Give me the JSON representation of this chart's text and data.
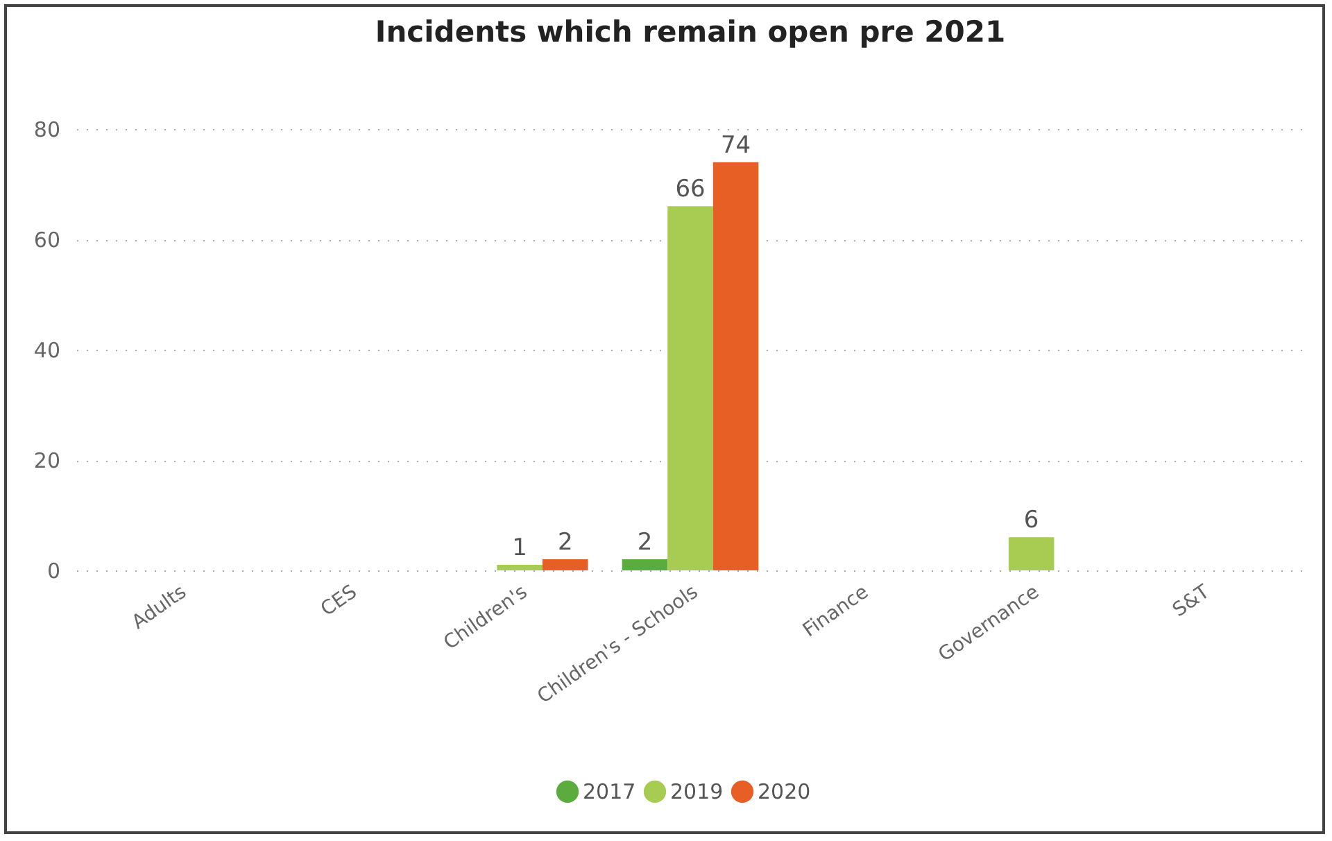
{
  "chart_data": {
    "type": "bar",
    "title": "Incidents which remain open pre 2021",
    "categories": [
      "Adults",
      "CES",
      "Children's",
      "Children's - Schools",
      "Finance",
      "Governance",
      "S&T"
    ],
    "series": [
      {
        "name": "2017",
        "color": "#5bab3e",
        "values": [
          null,
          null,
          null,
          2,
          null,
          null,
          null
        ]
      },
      {
        "name": "2019",
        "color": "#a8cc52",
        "values": [
          null,
          null,
          1,
          66,
          null,
          6,
          null
        ]
      },
      {
        "name": "2020",
        "color": "#e85f26",
        "values": [
          null,
          null,
          2,
          74,
          null,
          null,
          null
        ]
      }
    ],
    "ylim": [
      0,
      80
    ],
    "yticks": [
      0,
      20,
      40,
      60,
      80
    ],
    "grid": "y",
    "legend": "bottom",
    "data_labels": true
  }
}
